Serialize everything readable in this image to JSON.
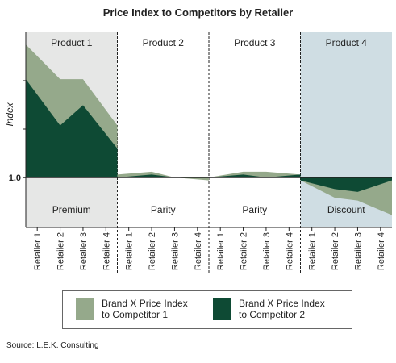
{
  "title": "Price Index to Competitors by Retailer",
  "source": "Source: L.E.K. Consulting",
  "colors": {
    "series1": "#95a98b",
    "series2": "#0e4a34",
    "panel_premium": "#e6e7e6",
    "panel_discount": "#cfdde3",
    "axis": "#222222"
  },
  "chart_data": {
    "type": "area",
    "title": "Price Index to Competitors by Retailer",
    "ylabel": "Index",
    "y_tick_label": "1.0",
    "y_reference": 1.0,
    "ylim": [
      0.84,
      1.52
    ],
    "groups": [
      {
        "name": "Product 1",
        "region": "Premium",
        "retailers": [
          "Retailer 1",
          "Retailer 2",
          "Retailer 3",
          "Retailer 4"
        ]
      },
      {
        "name": "Product 2",
        "region": "Parity",
        "retailers": [
          "Retailer 1",
          "Retailer 2",
          "Retailer 3",
          "Retailer 4"
        ]
      },
      {
        "name": "Product 3",
        "region": "Parity",
        "retailers": [
          "Retailer 1",
          "Retailer 2",
          "Retailer 3",
          "Retailer 4"
        ]
      },
      {
        "name": "Product 4",
        "region": "Discount",
        "retailers": [
          "Retailer 1",
          "Retailer 2",
          "Retailer 3",
          "Retailer 4"
        ]
      }
    ],
    "series": [
      {
        "name": "Brand X Price Index to Competitor 1",
        "values": [
          [
            1.46,
            1.34,
            1.34,
            1.18
          ],
          [
            1.01,
            1.02,
            1.0,
            0.99
          ],
          [
            1.0,
            1.02,
            1.02,
            1.01
          ],
          [
            0.99,
            0.93,
            0.92,
            0.87
          ]
        ]
      },
      {
        "name": "Brand X Price Index to Competitor 2",
        "values": [
          [
            1.34,
            1.18,
            1.25,
            1.1
          ],
          [
            1.0,
            1.01,
            1.0,
            1.0
          ],
          [
            1.0,
            1.01,
            1.0,
            1.01
          ],
          [
            0.99,
            0.96,
            0.95,
            0.99
          ]
        ]
      }
    ],
    "grid": false,
    "legend_position": "bottom"
  }
}
